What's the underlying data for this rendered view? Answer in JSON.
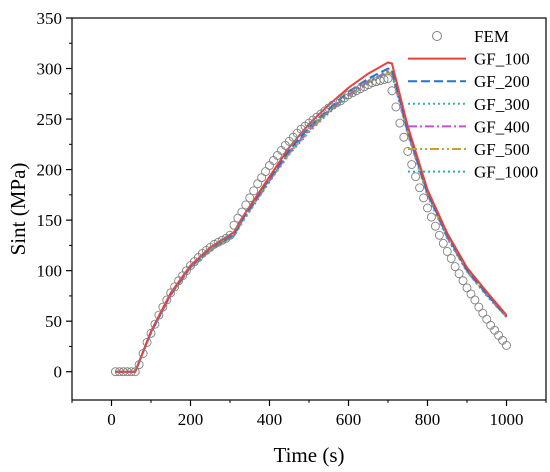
{
  "chart_data": {
    "type": "line",
    "title": "",
    "xlabel": "Time (s)",
    "ylabel": "Sint (MPa)",
    "xlim": [
      -100,
      1100
    ],
    "ylim": [
      -28,
      350
    ],
    "xticks": [
      0,
      200,
      400,
      600,
      800,
      1000
    ],
    "yticks": [
      0,
      50,
      100,
      150,
      200,
      250,
      300,
      350
    ],
    "grid": false,
    "legend_position": "top-right",
    "series": [
      {
        "name": "FEM",
        "style": "markers",
        "color": "#808080",
        "x": [
          10,
          20,
          30,
          40,
          50,
          60,
          70,
          80,
          90,
          100,
          110,
          120,
          130,
          140,
          150,
          160,
          170,
          180,
          190,
          200,
          210,
          220,
          230,
          240,
          250,
          260,
          270,
          280,
          290,
          300,
          310,
          320,
          330,
          340,
          350,
          360,
          370,
          380,
          390,
          400,
          410,
          420,
          430,
          440,
          450,
          460,
          470,
          480,
          490,
          500,
          510,
          520,
          530,
          540,
          550,
          560,
          570,
          580,
          590,
          600,
          610,
          620,
          630,
          640,
          650,
          660,
          670,
          680,
          690,
          700,
          710,
          720,
          730,
          740,
          750,
          760,
          770,
          780,
          790,
          800,
          810,
          820,
          830,
          840,
          850,
          860,
          870,
          880,
          890,
          900,
          910,
          920,
          930,
          940,
          950,
          960,
          970,
          980,
          990,
          1000
        ],
        "y": [
          0,
          0,
          0,
          0,
          0,
          0,
          7,
          18,
          29,
          38,
          47,
          56,
          64,
          71,
          78,
          84,
          90,
          95,
          100,
          105,
          109,
          113,
          117,
          120,
          123,
          126,
          128,
          130,
          132,
          135,
          145,
          152,
          158,
          165,
          172,
          179,
          186,
          192,
          198,
          204,
          209,
          214,
          219,
          224,
          228,
          232,
          236,
          240,
          243,
          246,
          249,
          252,
          255,
          258,
          261,
          264,
          266,
          268,
          271,
          274,
          276,
          278,
          280,
          282,
          284,
          286,
          287,
          288,
          289,
          290,
          278,
          262,
          246,
          232,
          218,
          205,
          193,
          182,
          172,
          162,
          153,
          144,
          135,
          127,
          119,
          112,
          104,
          97,
          90,
          83,
          77,
          71,
          64,
          58,
          52,
          46,
          41,
          36,
          31,
          26
        ]
      },
      {
        "name": "GF_100",
        "style": "solid",
        "color": "#e8413c",
        "x": [
          10,
          60,
          100,
          150,
          200,
          250,
          310,
          330,
          400,
          450,
          500,
          550,
          600,
          650,
          700,
          710,
          750,
          800,
          850,
          900,
          950,
          1000
        ],
        "y": [
          0,
          0,
          40,
          78,
          105,
          123,
          138,
          152,
          193,
          222,
          245,
          264,
          281,
          295,
          306,
          305,
          243,
          180,
          137,
          103,
          79,
          56
        ]
      },
      {
        "name": "GF_200",
        "style": "dashed",
        "color": "#2e6fc9",
        "x": [
          10,
          60,
          100,
          150,
          200,
          250,
          310,
          330,
          400,
          450,
          500,
          550,
          600,
          650,
          700,
          710,
          750,
          800,
          850,
          900,
          950,
          1000
        ],
        "y": [
          0,
          0,
          39,
          77,
          104,
          122,
          136,
          150,
          191,
          219,
          242,
          260,
          277,
          290,
          300,
          299,
          239,
          177,
          135,
          101,
          77,
          55
        ]
      },
      {
        "name": "GF_300",
        "style": "dotted",
        "color": "#33b8a8",
        "x": [
          10,
          60,
          100,
          150,
          200,
          250,
          310,
          330,
          400,
          450,
          500,
          550,
          600,
          650,
          700,
          710,
          750,
          800,
          850,
          900,
          950,
          1000
        ],
        "y": [
          0,
          0,
          39,
          77,
          104,
          121,
          135,
          149,
          190,
          218,
          240,
          259,
          275,
          288,
          298,
          297,
          238,
          176,
          134,
          100,
          76,
          55
        ]
      },
      {
        "name": "GF_400",
        "style": "dashdot",
        "color": "#c054c6",
        "x": [
          10,
          60,
          100,
          150,
          200,
          250,
          310,
          330,
          400,
          450,
          500,
          550,
          600,
          650,
          700,
          710,
          750,
          800,
          850,
          900,
          950,
          1000
        ],
        "y": [
          0,
          0,
          39,
          76,
          103,
          121,
          135,
          149,
          189,
          217,
          239,
          258,
          274,
          287,
          297,
          296,
          237,
          176,
          133,
          100,
          76,
          54
        ]
      },
      {
        "name": "GF_500",
        "style": "dashdotdot",
        "color": "#c9a02a",
        "x": [
          10,
          60,
          100,
          150,
          200,
          250,
          310,
          330,
          400,
          450,
          500,
          550,
          600,
          650,
          700,
          710,
          750,
          800,
          850,
          900,
          950,
          1000
        ],
        "y": [
          0,
          0,
          39,
          76,
          103,
          121,
          134,
          148,
          189,
          216,
          238,
          257,
          273,
          286,
          296,
          295,
          236,
          175,
          133,
          99,
          76,
          54
        ]
      },
      {
        "name": "GF_1000",
        "style": "dotted",
        "color": "#2aa8c6",
        "x": [
          10,
          60,
          100,
          150,
          200,
          250,
          310,
          330,
          400,
          450,
          500,
          550,
          600,
          650,
          700,
          710,
          750,
          800,
          850,
          900,
          950,
          1000
        ],
        "y": [
          0,
          0,
          38,
          76,
          103,
          120,
          134,
          147,
          188,
          215,
          237,
          256,
          272,
          285,
          295,
          294,
          235,
          174,
          132,
          99,
          75,
          54
        ]
      }
    ]
  }
}
